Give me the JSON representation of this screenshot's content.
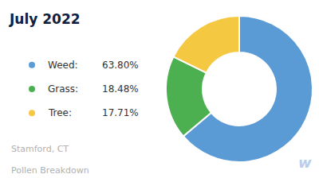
{
  "chart_data": {
    "type": "donut",
    "title": "July 2022",
    "subtitle": [
      "Stamford, CT",
      "Pollen Breakdown"
    ],
    "categories": [
      "Weed:",
      "Grass:",
      "Tree:"
    ],
    "values": [
      63.8,
      18.48,
      17.71
    ],
    "value_labels": [
      "63.80%",
      "18.48%",
      "17.71%"
    ],
    "colors": [
      "#5b9bd5",
      "#4caf50",
      "#f5c842"
    ],
    "legend": "left",
    "annotations": [
      "w"
    ]
  }
}
